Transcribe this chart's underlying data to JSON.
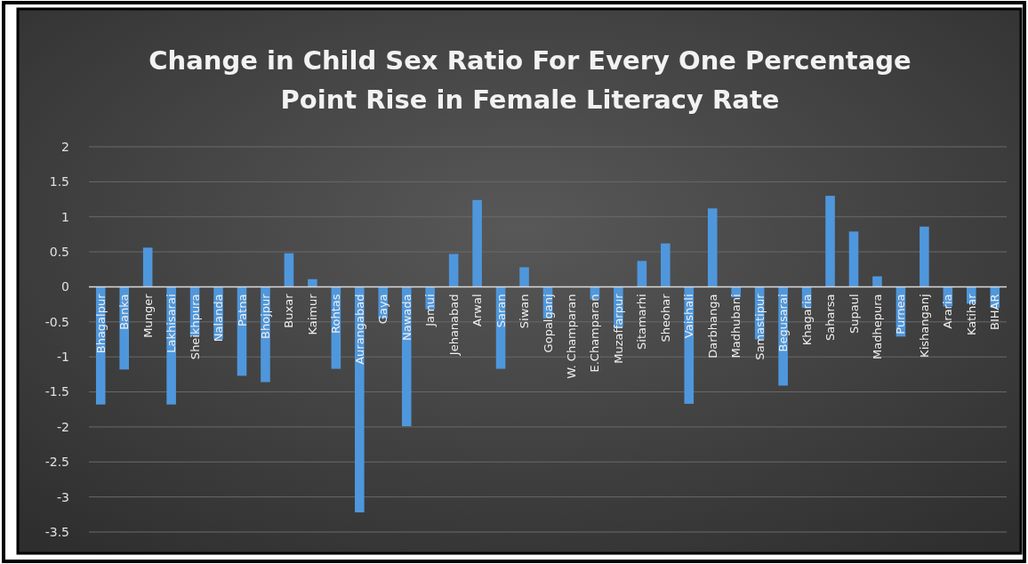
{
  "chart_data": {
    "type": "bar",
    "title": "Change in Child Sex Ratio For Every One Percentage Point Rise in Female Literacy Rate",
    "categories": [
      "Bhagalpur",
      "Banka",
      "Munger",
      "Lakhisarai",
      "Sheikhpura",
      "Nalanda",
      "Patna",
      "Bhojpur",
      "Buxar",
      "Kaimur",
      "Rohtas",
      "Aurangabad",
      "Gaya",
      "Nawada",
      "Jamui",
      "Jehanabad",
      "Arwal",
      "Saran",
      "Siwan",
      "Gopalganj",
      "W. Champaran",
      "E.Champaran",
      "Muzaffarpur",
      "Sitamarhi",
      "Sheohar",
      "Vaishali",
      "Darbhanga",
      "Madhubani",
      "Samastipur",
      "Begusarai",
      "Khagaria",
      "Saharsa",
      "Supaul",
      "Madhepura",
      "Purnea",
      "Kishanganj",
      "Araria",
      "Katihar",
      "BIHAR"
    ],
    "values": [
      -1.68,
      -1.18,
      0.56,
      -1.68,
      -0.7,
      -0.75,
      -1.27,
      -1.36,
      0.48,
      0.11,
      -1.17,
      -3.22,
      -0.45,
      -1.99,
      -0.32,
      0.47,
      1.24,
      -1.17,
      0.28,
      -0.45,
      0,
      -0.18,
      -0.58,
      0.37,
      0.62,
      -1.67,
      1.12,
      -0.15,
      -0.75,
      -1.41,
      -0.3,
      1.3,
      0.79,
      0.15,
      -0.71,
      0.86,
      -0.28,
      -0.24,
      -0.3
    ],
    "color": "#4f97dc",
    "ylim": [
      -3.5,
      2
    ],
    "yticks": [
      2,
      1.5,
      1,
      0.5,
      0,
      -0.5,
      -1,
      -1.5,
      -2,
      -2.5,
      -3,
      -3.5
    ],
    "grid": "y"
  }
}
